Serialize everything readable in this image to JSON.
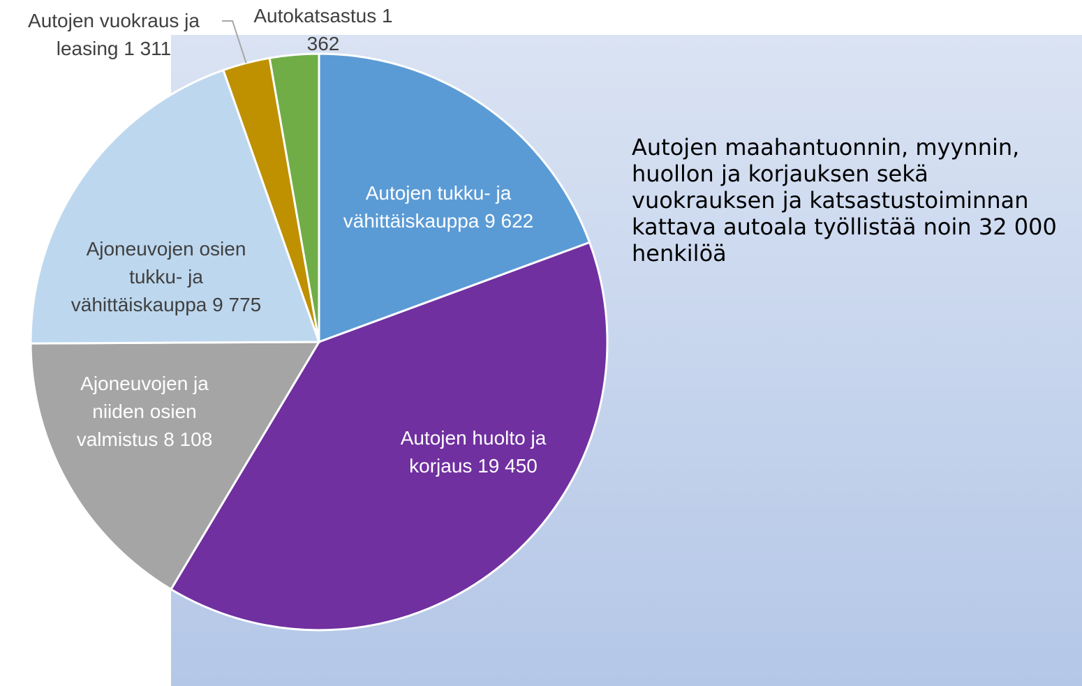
{
  "chart_data": {
    "type": "pie",
    "categories": [
      "Autojen tukku- ja vähittäiskauppa",
      "Autojen huolto ja korjaus",
      "Ajoneuvojen ja niiden osien valmistus",
      "Ajoneuvojen osien tukku- ja vähittäiskauppa",
      "Autojen vuokraus ja leasing",
      "Autokatsastus"
    ],
    "values": [
      9622,
      19450,
      8108,
      9775,
      1311,
      1362
    ],
    "value_labels": [
      "9 622",
      "19 450",
      "8 108",
      "9 775",
      "1 311",
      "1 362"
    ],
    "colors": [
      "#5b9bd5",
      "#7030a0",
      "#a5a5a5",
      "#bdd7ee",
      "#bf9000",
      "#70ad47"
    ],
    "annotation": "Autojen maahantuonnin, myynnin, huollon ja korjauksen sekä vuokrauksen ja katsastustoiminnan kattava autoala työllistää noin 32 000 henkilöä"
  }
}
